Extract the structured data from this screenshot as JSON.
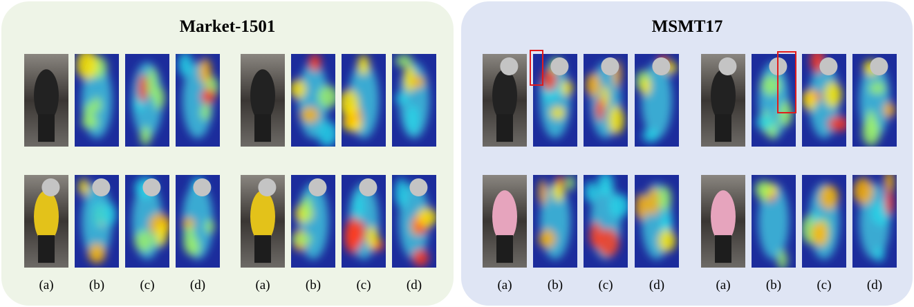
{
  "panels": [
    {
      "title": "Market-1501",
      "labels": [
        "(a)",
        "(b)",
        "(c)",
        "(d)",
        "(a)",
        "(b)",
        "(c)",
        "(d)"
      ]
    },
    {
      "title": "MSMT17",
      "labels": [
        "(a)",
        "(b)",
        "(c)",
        "(d)",
        "(a)",
        "(b)",
        "(c)",
        "(d)"
      ]
    }
  ]
}
